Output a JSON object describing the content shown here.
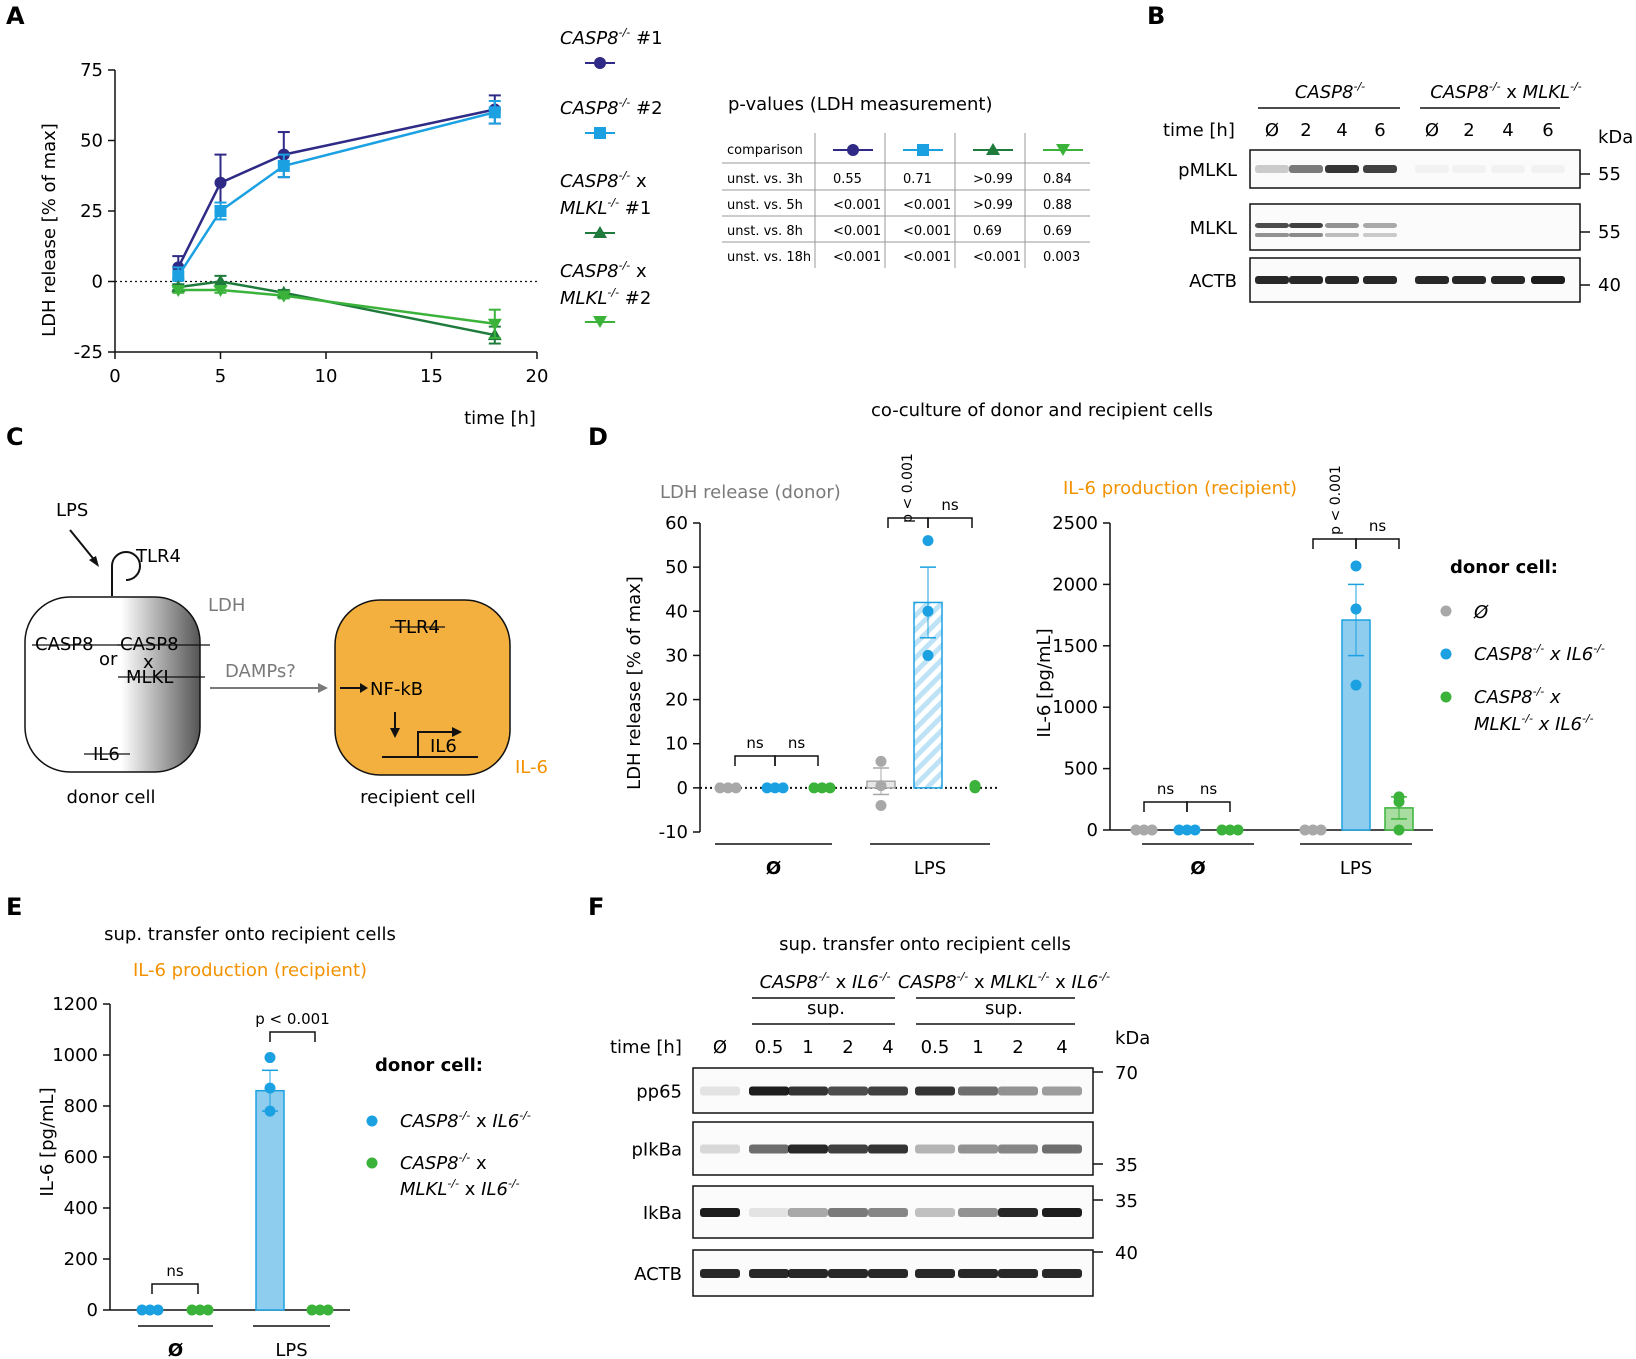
{
  "panels": {
    "a": "A",
    "b": "B",
    "c": "C",
    "d": "D",
    "e": "E",
    "f": "F"
  },
  "colors": {
    "navy": "#2e2a85",
    "lightblue": "#1ba1e2",
    "darkgreen": "#1e7b3c",
    "green": "#3bb33b",
    "grey": "#a8a8a8",
    "orange": "#f4b03e",
    "orange_text": "#f39200",
    "bar_blue": "#8fcdee",
    "bar_green": "#a8dca0",
    "gray_text": "#7a7a7a"
  },
  "chart_data": [
    {
      "id": "A",
      "type": "line",
      "xlabel": "time [h]",
      "ylabel": "LDH release [% of max]",
      "xlim": [
        0,
        20
      ],
      "ylim": [
        -25,
        75
      ],
      "xticks": [
        "0",
        "5",
        "10",
        "15",
        "20"
      ],
      "yticks": [
        "75",
        "50",
        "25",
        "0",
        "-25"
      ],
      "xtick_values": [
        0,
        5,
        10,
        15,
        20
      ],
      "ytick_values": [
        75,
        50,
        25,
        0,
        -25
      ],
      "series": [
        {
          "name": "CASP8-/- #1",
          "marker": "circle",
          "color": "#2e2a85",
          "x": [
            3,
            5,
            8,
            18
          ],
          "y": [
            5,
            35,
            45,
            61
          ],
          "err": [
            4,
            10,
            8,
            5
          ]
        },
        {
          "name": "CASP8-/- #2",
          "marker": "square",
          "color": "#1ba1e2",
          "x": [
            3,
            5,
            8,
            18
          ],
          "y": [
            2,
            25,
            41,
            60
          ],
          "err": [
            3,
            3,
            4,
            4
          ]
        },
        {
          "name": "CASP8-/- x MLKL-/- #1",
          "marker": "triangle",
          "color": "#1e7b3c",
          "x": [
            3,
            5,
            8,
            18
          ],
          "y": [
            -2,
            0,
            -4,
            -19
          ],
          "err": [
            1,
            2,
            1,
            3
          ]
        },
        {
          "name": "CASP8-/- x MLKL-/- #2",
          "marker": "triangle-down",
          "color": "#3bb33b",
          "x": [
            3,
            5,
            8,
            18
          ],
          "y": [
            -3,
            -3,
            -5,
            -15
          ],
          "err": [
            1,
            1,
            1,
            5
          ]
        }
      ]
    },
    {
      "id": "D-left",
      "type": "bar",
      "title": "LDH release (donor)",
      "ylabel": "LDH release [% of max]",
      "ylim": [
        -10,
        60
      ],
      "yticks": [
        "60",
        "50",
        "40",
        "30",
        "20",
        "10",
        "0",
        "-10"
      ],
      "ytick_values": [
        60,
        50,
        40,
        30,
        20,
        10,
        0,
        -10
      ],
      "groups": [
        "Ø",
        "LPS"
      ],
      "series": [
        {
          "name": "Ø",
          "values": [
            0,
            1.5
          ],
          "points": [
            [
              0,
              0,
              0
            ],
            [
              -4,
              0.5,
              6
            ]
          ],
          "err": [
            0,
            3
          ]
        },
        {
          "name": "CASP8-/- x IL6-/-",
          "values": [
            0,
            42
          ],
          "points": [
            [
              0,
              0,
              0
            ],
            [
              30,
              40,
              56
            ]
          ],
          "err": [
            0,
            8
          ]
        },
        {
          "name": "CASP8-/- x MLKL-/- x IL6-/-",
          "values": [
            0,
            0.3
          ],
          "points": [
            [
              0,
              0,
              0
            ],
            [
              0,
              0.5,
              0.5
            ]
          ],
          "err": [
            0,
            0
          ]
        }
      ],
      "annotations": [
        "ns",
        "ns",
        "p < 0.001",
        "ns"
      ]
    },
    {
      "id": "D-right",
      "type": "bar",
      "title": "IL-6 production (recipient)",
      "ylabel": "IL-6 [pg/mL]",
      "ylim": [
        0,
        2500
      ],
      "yticks": [
        "2500",
        "2000",
        "1500",
        "1000",
        "500",
        "0"
      ],
      "ytick_values": [
        2500,
        2000,
        1500,
        1000,
        500,
        0
      ],
      "groups": [
        "Ø",
        "LPS"
      ],
      "series": [
        {
          "name": "Ø",
          "values": [
            0,
            0
          ],
          "points": [
            [
              0,
              0,
              0
            ],
            [
              0,
              0,
              0
            ]
          ],
          "err": [
            0,
            0
          ]
        },
        {
          "name": "CASP8-/- x IL6-/-",
          "values": [
            0,
            1710
          ],
          "points": [
            [
              0,
              0,
              0
            ],
            [
              1180,
              1800,
              2150
            ]
          ],
          "err": [
            0,
            290
          ]
        },
        {
          "name": "CASP8-/- x MLKL-/- x IL6-/-",
          "values": [
            0,
            180
          ],
          "points": [
            [
              0,
              0,
              0
            ],
            [
              0,
              230,
              270
            ]
          ],
          "err": [
            0,
            90
          ]
        }
      ],
      "annotations": [
        "ns",
        "ns",
        "p < 0.001",
        "ns"
      ]
    },
    {
      "id": "E",
      "type": "bar",
      "title": "IL-6 production (recipient)",
      "ylabel": "IL-6 [pg/mL]",
      "ylim": [
        0,
        1200
      ],
      "yticks": [
        "1200",
        "1000",
        "800",
        "600",
        "400",
        "200",
        "0"
      ],
      "ytick_values": [
        1200,
        1000,
        800,
        600,
        400,
        200,
        0
      ],
      "groups": [
        "Ø",
        "LPS"
      ],
      "series": [
        {
          "name": "CASP8-/- x IL6-/-",
          "values": [
            0,
            860
          ],
          "points": [
            [
              0,
              0,
              0
            ],
            [
              780,
              870,
              990
            ]
          ],
          "err": [
            0,
            80
          ]
        },
        {
          "name": "CASP8-/- x MLKL-/- x IL6-/-",
          "values": [
            0,
            0
          ],
          "points": [
            [
              0,
              0,
              0
            ],
            [
              0,
              0,
              0
            ]
          ],
          "err": [
            0,
            0
          ]
        }
      ],
      "annotations": [
        "ns",
        "p < 0.001"
      ]
    }
  ],
  "panelA": {
    "legend": [
      {
        "gene": "CASP8",
        "sup": "-/-",
        "rest": " #1",
        "line2": ""
      },
      {
        "gene": "CASP8",
        "sup": "-/-",
        "rest": " #2",
        "line2": ""
      },
      {
        "gene": "CASP8",
        "sup": "-/-",
        "rest": " x",
        "line2": "MLKL",
        "line2sup": "-/-",
        "line2rest": " #1"
      },
      {
        "gene": "CASP8",
        "sup": "-/-",
        "rest": " x",
        "line2": "MLKL",
        "line2sup": "-/-",
        "line2rest": " #2"
      }
    ],
    "table": {
      "title": "p-values (LDH measurement)",
      "header": "comparison",
      "rows": [
        [
          "unst. vs. 3h",
          "0.55",
          "0.71",
          ">0.99",
          "0.84"
        ],
        [
          "unst. vs. 5h",
          "<0.001",
          "<0.001",
          ">0.99",
          "0.88"
        ],
        [
          "unst. vs. 8h",
          "<0.001",
          "<0.001",
          "0.69",
          "0.69"
        ],
        [
          "unst. vs. 18h",
          "<0.001",
          "<0.001",
          "<0.001",
          "0.003"
        ]
      ]
    }
  },
  "panelB": {
    "group1": "CASP8",
    "group1sup": "-/-",
    "group2a": "CASP8",
    "group2sup": "-/-",
    "group2mid": " x ",
    "group2b": "MLKL",
    "group2bsup": "-/-",
    "time_label": "time [h]",
    "lanes": [
      "Ø",
      "2",
      "4",
      "6",
      "Ø",
      "2",
      "4",
      "6"
    ],
    "kda": "kDa",
    "blots": [
      {
        "label": "pMLKL",
        "marker": "55"
      },
      {
        "label": "MLKL",
        "marker": "55"
      },
      {
        "label": "ACTB",
        "marker": "40"
      }
    ]
  },
  "panelC": {
    "lps": "LPS",
    "tlr4": "TLR4",
    "ldh": "LDH",
    "casp8": "CASP8",
    "or": "or",
    "casp8b": "CASP8",
    "x": "x",
    "mlkl": "MLKL",
    "il6": "IL6",
    "damps": "DAMPs?",
    "tlr4_r": "TLR4",
    "nfkb": "NF-kB",
    "il6_r": "IL6",
    "il6_out": "IL-6",
    "donor": "donor cell",
    "recipient": "recipient cell"
  },
  "panelD": {
    "header": "co-culture of donor and recipient cells",
    "legend_title": "donor cell:",
    "legend": [
      {
        "text": "Ø",
        "line2": ""
      },
      {
        "text": "CASP8",
        "sup": "-/-",
        "mid": " x ",
        "t2": "IL6",
        "sup2": "-/-",
        "line2": ""
      },
      {
        "text": "CASP8",
        "sup": "-/-",
        "mid": " x",
        "line2": "MLKL",
        "l2sup": "-/-",
        "l2mid": " x ",
        "l2t": "IL6",
        "l2sup2": "-/-"
      }
    ],
    "groups": [
      "Ø",
      "LPS"
    ]
  },
  "panelE": {
    "header": "sup. transfer onto recipient cells",
    "legend_title": "donor cell:",
    "legend": [
      {
        "text": "CASP8",
        "sup": "-/-",
        "mid": " x ",
        "t2": "IL6",
        "sup2": "-/-"
      },
      {
        "text": "CASP8",
        "sup": "-/-",
        "mid": " x",
        "line2": "MLKL",
        "l2sup": "-/-",
        "l2mid": " x ",
        "l2t": "IL6",
        "l2sup2": "-/-"
      }
    ],
    "groups": [
      "Ø",
      "LPS"
    ]
  },
  "panelF": {
    "header": "sup. transfer onto recipient cells",
    "g1": "CASP8",
    "g1sup": "-/-",
    "g1mid": " x ",
    "g1b": "IL6",
    "g1bsup": "-/-",
    "g2": "CASP8",
    "g2sup": "-/-",
    "g2mid": " x ",
    "g2b": "MLKL",
    "g2bsup": "-/-",
    "g2mid2": " x ",
    "g2c": "IL6",
    "g2csup": "-/-",
    "sup": "sup.",
    "time_label": "time [h]",
    "lanes": [
      "Ø",
      "0.5",
      "1",
      "2",
      "4",
      "0.5",
      "1",
      "2",
      "4"
    ],
    "kda": "kDa",
    "blots": [
      {
        "label": "pp65",
        "marker": "70"
      },
      {
        "label": "pIkBa",
        "marker": "35"
      },
      {
        "label": "IkBa",
        "marker": "35"
      },
      {
        "label": "ACTB",
        "marker": "40"
      }
    ]
  }
}
